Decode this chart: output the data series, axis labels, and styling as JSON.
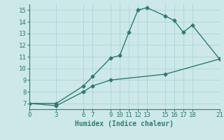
{
  "line1_x": [
    0,
    3,
    6,
    7,
    9,
    10,
    11,
    12,
    13,
    15,
    16,
    17,
    18,
    21
  ],
  "line1_y": [
    7.0,
    7.0,
    8.5,
    9.3,
    10.9,
    11.1,
    13.1,
    15.0,
    15.2,
    14.5,
    14.1,
    13.1,
    13.7,
    10.8
  ],
  "line2_x": [
    0,
    3,
    6,
    7,
    9,
    15,
    21
  ],
  "line2_y": [
    7.0,
    6.8,
    8.0,
    8.5,
    9.0,
    9.5,
    10.8
  ],
  "line_color": "#2e7d6e",
  "bg_color": "#cce8e8",
  "grid_color": "#b0d4d4",
  "xlabel": "Humidex (Indice chaleur)",
  "xlim": [
    0,
    21
  ],
  "ylim": [
    6.5,
    15.5
  ],
  "yticks": [
    7,
    8,
    9,
    10,
    11,
    12,
    13,
    14,
    15
  ],
  "xticks": [
    0,
    3,
    6,
    7,
    9,
    10,
    11,
    12,
    13,
    15,
    16,
    17,
    18,
    21
  ],
  "marker": "D",
  "markersize": 2.5,
  "linewidth": 1.0,
  "xlabel_fontsize": 7,
  "tick_fontsize": 6.5
}
